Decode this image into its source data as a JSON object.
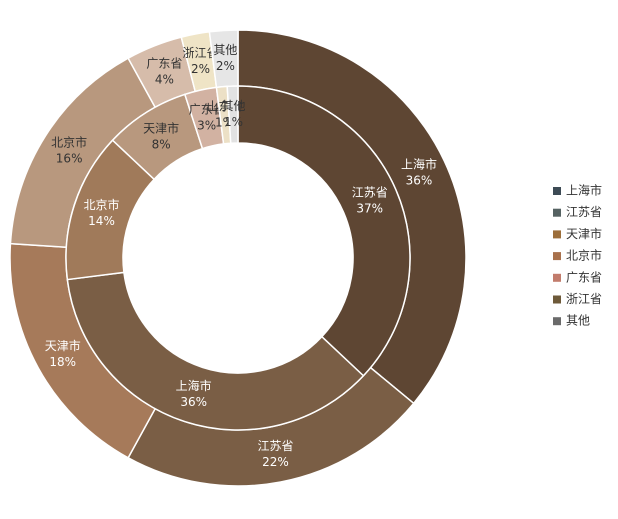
{
  "chart_data": {
    "type": "donut",
    "series": [
      {
        "name": "outer",
        "categories": [
          "上海市",
          "江苏省",
          "天津市",
          "北京市",
          "广东省",
          "浙江省",
          "其他"
        ],
        "values": [
          36,
          22,
          18,
          16,
          4,
          2,
          2
        ],
        "value_labels": [
          "36%",
          "22%",
          "18%",
          "16%",
          "4%",
          "2%",
          "2%"
        ],
        "colors": [
          "#5e4633",
          "#7a5e45",
          "#a67a5a",
          "#b8987e",
          "#d6bcaa",
          "#efe4c6",
          "#e6e6e6"
        ]
      },
      {
        "name": "inner",
        "categories": [
          "江苏省",
          "上海市",
          "北京市",
          "天津市",
          "广东省",
          "山东省",
          "其他"
        ],
        "values": [
          37,
          36,
          14,
          8,
          3,
          1,
          1
        ],
        "value_labels": [
          "37%",
          "36%",
          "14%",
          "8%",
          "3%",
          "1%",
          "1%"
        ],
        "colors": [
          "#5e4633",
          "#7a5e45",
          "#a07a5a",
          "#b8987e",
          "#d2b2a2",
          "#ece0c6",
          "#e2e2e2"
        ]
      }
    ],
    "legend": {
      "names": [
        "上海市",
        "江苏省",
        "天津市",
        "北京市",
        "广东省",
        "浙江省",
        "其他"
      ],
      "colors": [
        "#3d4b55",
        "#556262",
        "#9c6e3a",
        "#a8714c",
        "#c27c6c",
        "#6e5a3a",
        "#6a6a6a"
      ],
      "position": "right"
    }
  }
}
